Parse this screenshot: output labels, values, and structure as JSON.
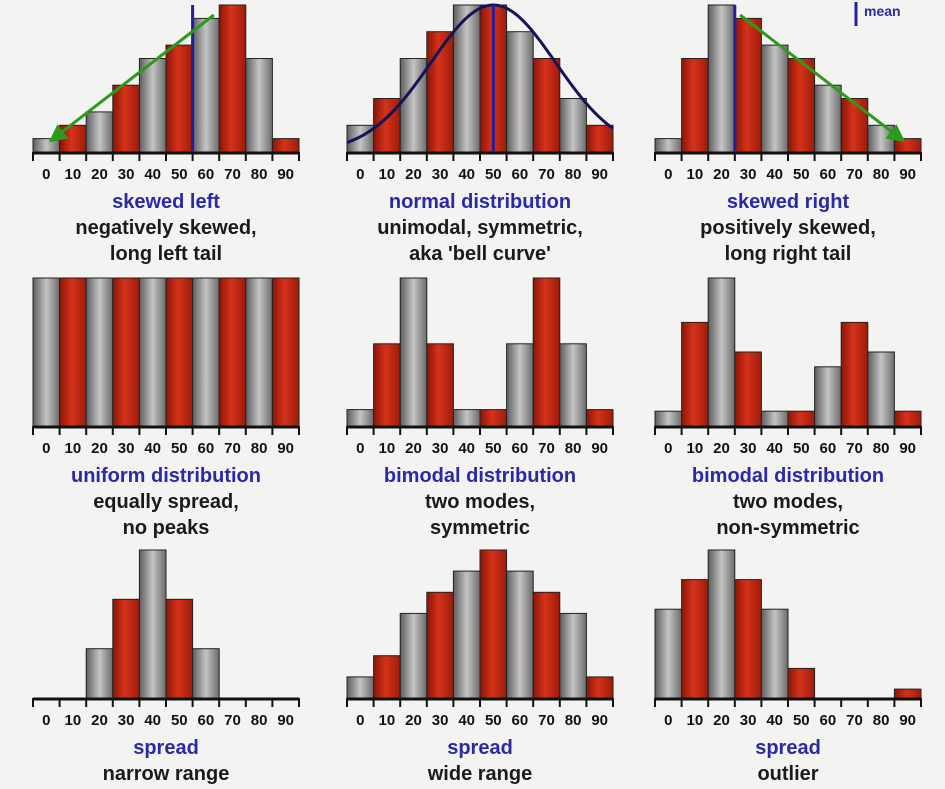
{
  "colors": {
    "red_bar": "#c62a14",
    "gray_bar": "#9a9a9a",
    "mean_line": "#1f1fa0",
    "curve": "#14145a",
    "trend_arrow": "#2c9a1a",
    "caption_title": "#2a2aa8",
    "caption_text": "#1a1a1a"
  },
  "legend": {
    "label": "mean"
  },
  "chart_data": [
    {
      "type": "bar",
      "categories": [
        "0",
        "10",
        "20",
        "30",
        "40",
        "50",
        "60",
        "70",
        "80",
        "90"
      ],
      "values": [
        1,
        2,
        3,
        5,
        7,
        8,
        10,
        11,
        7,
        1
      ],
      "ylim": [
        0,
        11
      ],
      "mean": 60,
      "overlay": "arrow-left",
      "title": "skewed left",
      "lines": [
        "negatively skewed,",
        "long left tail"
      ]
    },
    {
      "type": "bar",
      "categories": [
        "0",
        "10",
        "20",
        "30",
        "40",
        "50",
        "60",
        "70",
        "80",
        "90"
      ],
      "values": [
        2,
        4,
        7,
        9,
        11,
        11,
        9,
        7,
        4,
        2
      ],
      "ylim": [
        0,
        11
      ],
      "mean": 50,
      "overlay": "bell-curve",
      "title": "normal distribution",
      "lines": [
        "unimodal, symmetric,",
        "aka 'bell curve'"
      ]
    },
    {
      "type": "bar",
      "categories": [
        "0",
        "10",
        "20",
        "30",
        "40",
        "50",
        "60",
        "70",
        "80",
        "90"
      ],
      "values": [
        1,
        7,
        11,
        10,
        8,
        7,
        5,
        4,
        2,
        1
      ],
      "ylim": [
        0,
        11
      ],
      "mean": 30,
      "overlay": "arrow-right",
      "title": "skewed right",
      "lines": [
        "positively skewed,",
        "long right tail"
      ]
    },
    {
      "type": "bar",
      "categories": [
        "0",
        "10",
        "20",
        "30",
        "40",
        "50",
        "60",
        "70",
        "80",
        "90"
      ],
      "values": [
        10,
        10,
        10,
        10,
        10,
        10,
        10,
        10,
        10,
        10
      ],
      "ylim": [
        0,
        10
      ],
      "title": "uniform distribution",
      "lines": [
        "equally spread,",
        "no peaks"
      ]
    },
    {
      "type": "bar",
      "categories": [
        "0",
        "10",
        "20",
        "30",
        "40",
        "50",
        "60",
        "70",
        "80",
        "90"
      ],
      "values": [
        1,
        5,
        9,
        5,
        1,
        1,
        5,
        9,
        5,
        1
      ],
      "ylim": [
        0,
        9
      ],
      "title": "bimodal distribution",
      "lines": [
        "two modes,",
        "symmetric"
      ]
    },
    {
      "type": "bar",
      "categories": [
        "0",
        "10",
        "20",
        "30",
        "40",
        "50",
        "60",
        "70",
        "80",
        "90"
      ],
      "values": [
        1,
        7,
        10,
        5,
        1,
        1,
        4,
        7,
        5,
        1
      ],
      "ylim": [
        0,
        10
      ],
      "title": "bimodal distribution",
      "lines": [
        "two modes,",
        "non-symmetric"
      ]
    },
    {
      "type": "bar",
      "categories": [
        "0",
        "10",
        "20",
        "30",
        "40",
        "50",
        "60",
        "70",
        "80",
        "90"
      ],
      "values": [
        0,
        0,
        2,
        4,
        6,
        4,
        2,
        0,
        0,
        0
      ],
      "ylim": [
        0,
        6
      ],
      "title": "spread",
      "lines": [
        "narrow range"
      ]
    },
    {
      "type": "bar",
      "categories": [
        "0",
        "10",
        "20",
        "30",
        "40",
        "50",
        "60",
        "70",
        "80",
        "90"
      ],
      "values": [
        1,
        2,
        4,
        5,
        6,
        7,
        6,
        5,
        4,
        1
      ],
      "ylim": [
        0,
        7
      ],
      "title": "spread",
      "lines": [
        "wide range"
      ]
    },
    {
      "type": "bar",
      "categories": [
        "0",
        "10",
        "20",
        "30",
        "40",
        "50",
        "60",
        "70",
        "80",
        "90"
      ],
      "values": [
        3,
        4,
        5,
        4,
        3,
        1,
        0,
        0,
        0,
        0.3
      ],
      "ylim": [
        0,
        5
      ],
      "title": "spread",
      "lines": [
        "outlier"
      ]
    }
  ]
}
